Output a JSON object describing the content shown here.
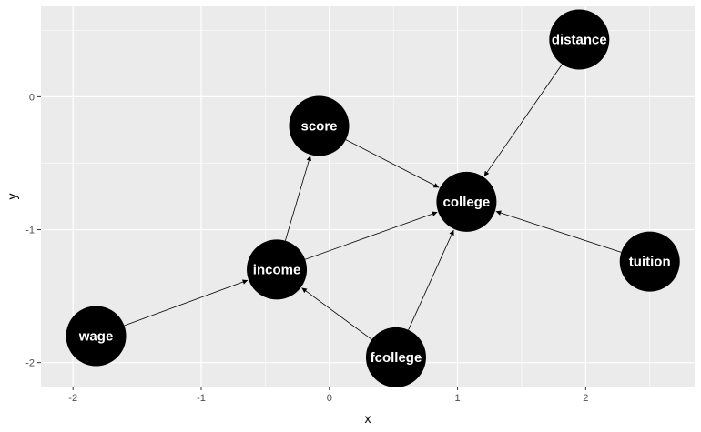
{
  "chart_data": {
    "type": "network",
    "xlabel": "x",
    "ylabel": "y",
    "xlim": [
      -2.25,
      2.85
    ],
    "ylim": [
      -2.18,
      0.68
    ],
    "x_ticks": [
      -2,
      -1,
      0,
      1,
      2
    ],
    "x_tick_labels": [
      "-2",
      "-1",
      "0",
      "1",
      "2"
    ],
    "y_ticks": [
      0,
      -1,
      -2
    ],
    "y_tick_labels": [
      "0",
      "-1",
      "-2"
    ],
    "grid": true,
    "nodes": [
      {
        "id": "distance",
        "label": "distance",
        "x": 1.95,
        "y": 0.43
      },
      {
        "id": "score",
        "label": "score",
        "x": -0.08,
        "y": -0.22
      },
      {
        "id": "college",
        "label": "college",
        "x": 1.07,
        "y": -0.79
      },
      {
        "id": "tuition",
        "label": "tuition",
        "x": 2.5,
        "y": -1.24
      },
      {
        "id": "income",
        "label": "income",
        "x": -0.41,
        "y": -1.3
      },
      {
        "id": "wage",
        "label": "wage",
        "x": -1.82,
        "y": -1.8
      },
      {
        "id": "fcollege",
        "label": "fcollege",
        "x": 0.52,
        "y": -1.96
      }
    ],
    "edges": [
      {
        "from": "distance",
        "to": "college"
      },
      {
        "from": "score",
        "to": "college"
      },
      {
        "from": "tuition",
        "to": "college"
      },
      {
        "from": "income",
        "to": "college"
      },
      {
        "from": "income",
        "to": "score"
      },
      {
        "from": "fcollege",
        "to": "college"
      },
      {
        "from": "fcollege",
        "to": "income"
      },
      {
        "from": "wage",
        "to": "income"
      }
    ],
    "colors": {
      "panel_background": "#EBEBEB",
      "grid_major": "#FFFFFF",
      "node_fill": "#000000",
      "node_label": "#FFFFFF",
      "edge": "#000000"
    }
  }
}
